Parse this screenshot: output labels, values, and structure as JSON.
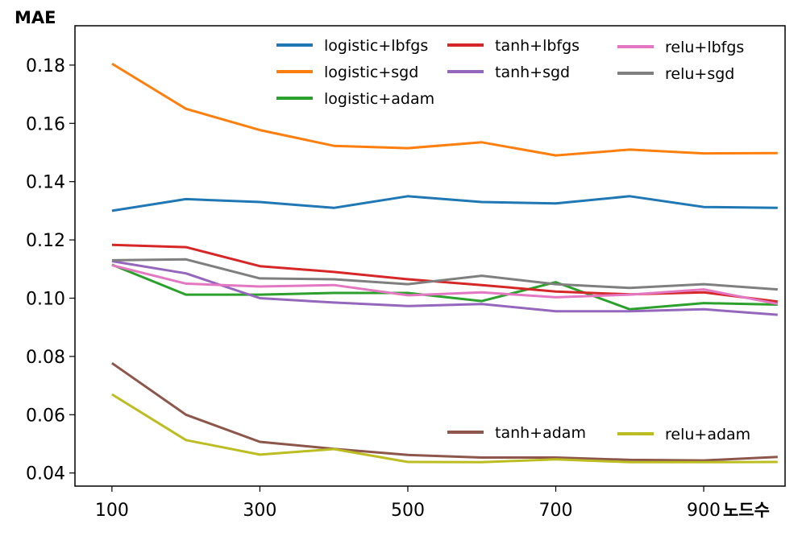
{
  "chart_data": {
    "type": "line",
    "title": "",
    "xlabel": "노드수",
    "ylabel": "MAE",
    "xlim": [
      50,
      1010
    ],
    "ylim": [
      0.0355,
      0.1935
    ],
    "x": [
      100,
      200,
      300,
      400,
      500,
      600,
      700,
      800,
      900,
      1000
    ],
    "xticks": [
      100,
      300,
      500,
      700,
      900
    ],
    "xtick_labels": [
      "100",
      "300",
      "500",
      "700",
      "900"
    ],
    "yticks": [
      0.04,
      0.06,
      0.08,
      0.1,
      0.12,
      0.14,
      0.16,
      0.18
    ],
    "ytick_labels": [
      "0.04",
      "0.06",
      "0.08",
      "0.10",
      "0.12",
      "0.14",
      "0.16",
      "0.18"
    ],
    "grid": false,
    "series": [
      {
        "name": "logistic+lbfgs",
        "color": "#1f77b4",
        "values": [
          0.13,
          0.134,
          0.133,
          0.131,
          0.135,
          0.133,
          0.1325,
          0.135,
          0.1313,
          0.131
        ]
      },
      {
        "name": "logistic+sgd",
        "color": "#ff7f0e",
        "values": [
          0.1805,
          0.165,
          0.1577,
          0.1523,
          0.1515,
          0.1535,
          0.149,
          0.151,
          0.1497,
          0.1498
        ]
      },
      {
        "name": "logistic+adam",
        "color": "#2ca02c",
        "values": [
          0.1115,
          0.1012,
          0.1012,
          0.1018,
          0.1018,
          0.099,
          0.1055,
          0.0962,
          0.0983,
          0.0978
        ]
      },
      {
        "name": "tanh+lbfgs",
        "color": "#d62728",
        "values": [
          0.1183,
          0.1175,
          0.111,
          0.109,
          0.1065,
          0.1045,
          0.1023,
          0.1013,
          0.102,
          0.0988
        ]
      },
      {
        "name": "tanh+sgd",
        "color": "#9467bd",
        "values": [
          0.1127,
          0.1085,
          0.1,
          0.0985,
          0.0973,
          0.098,
          0.0955,
          0.0955,
          0.0962,
          0.0943
        ]
      },
      {
        "name": "tanh+adam",
        "color": "#8c564b",
        "values": [
          0.0777,
          0.06,
          0.0507,
          0.0483,
          0.0462,
          0.0453,
          0.0453,
          0.0445,
          0.0443,
          0.0455
        ]
      },
      {
        "name": "relu+lbfgs",
        "color": "#e377c2",
        "values": [
          0.1113,
          0.105,
          0.104,
          0.1045,
          0.101,
          0.102,
          0.1003,
          0.1012,
          0.103,
          0.098
        ]
      },
      {
        "name": "relu+sgd",
        "color": "#7f7f7f",
        "values": [
          0.113,
          0.1133,
          0.1068,
          0.1065,
          0.1048,
          0.1077,
          0.1048,
          0.1035,
          0.1048,
          0.103
        ]
      },
      {
        "name": "relu+adam",
        "color": "#bcbd22",
        "values": [
          0.067,
          0.0513,
          0.0463,
          0.0482,
          0.0438,
          0.0437,
          0.0447,
          0.0437,
          0.0437,
          0.0438
        ]
      }
    ],
    "legend_groups": [
      {
        "placement": "top",
        "entries": [
          "logistic+lbfgs",
          "logistic+sgd",
          "logistic+adam",
          "tanh+lbfgs",
          "tanh+sgd",
          "relu+lbfgs",
          "relu+sgd"
        ]
      },
      {
        "placement": "bottom-right",
        "entries": [
          "tanh+adam",
          "relu+adam"
        ]
      }
    ]
  }
}
